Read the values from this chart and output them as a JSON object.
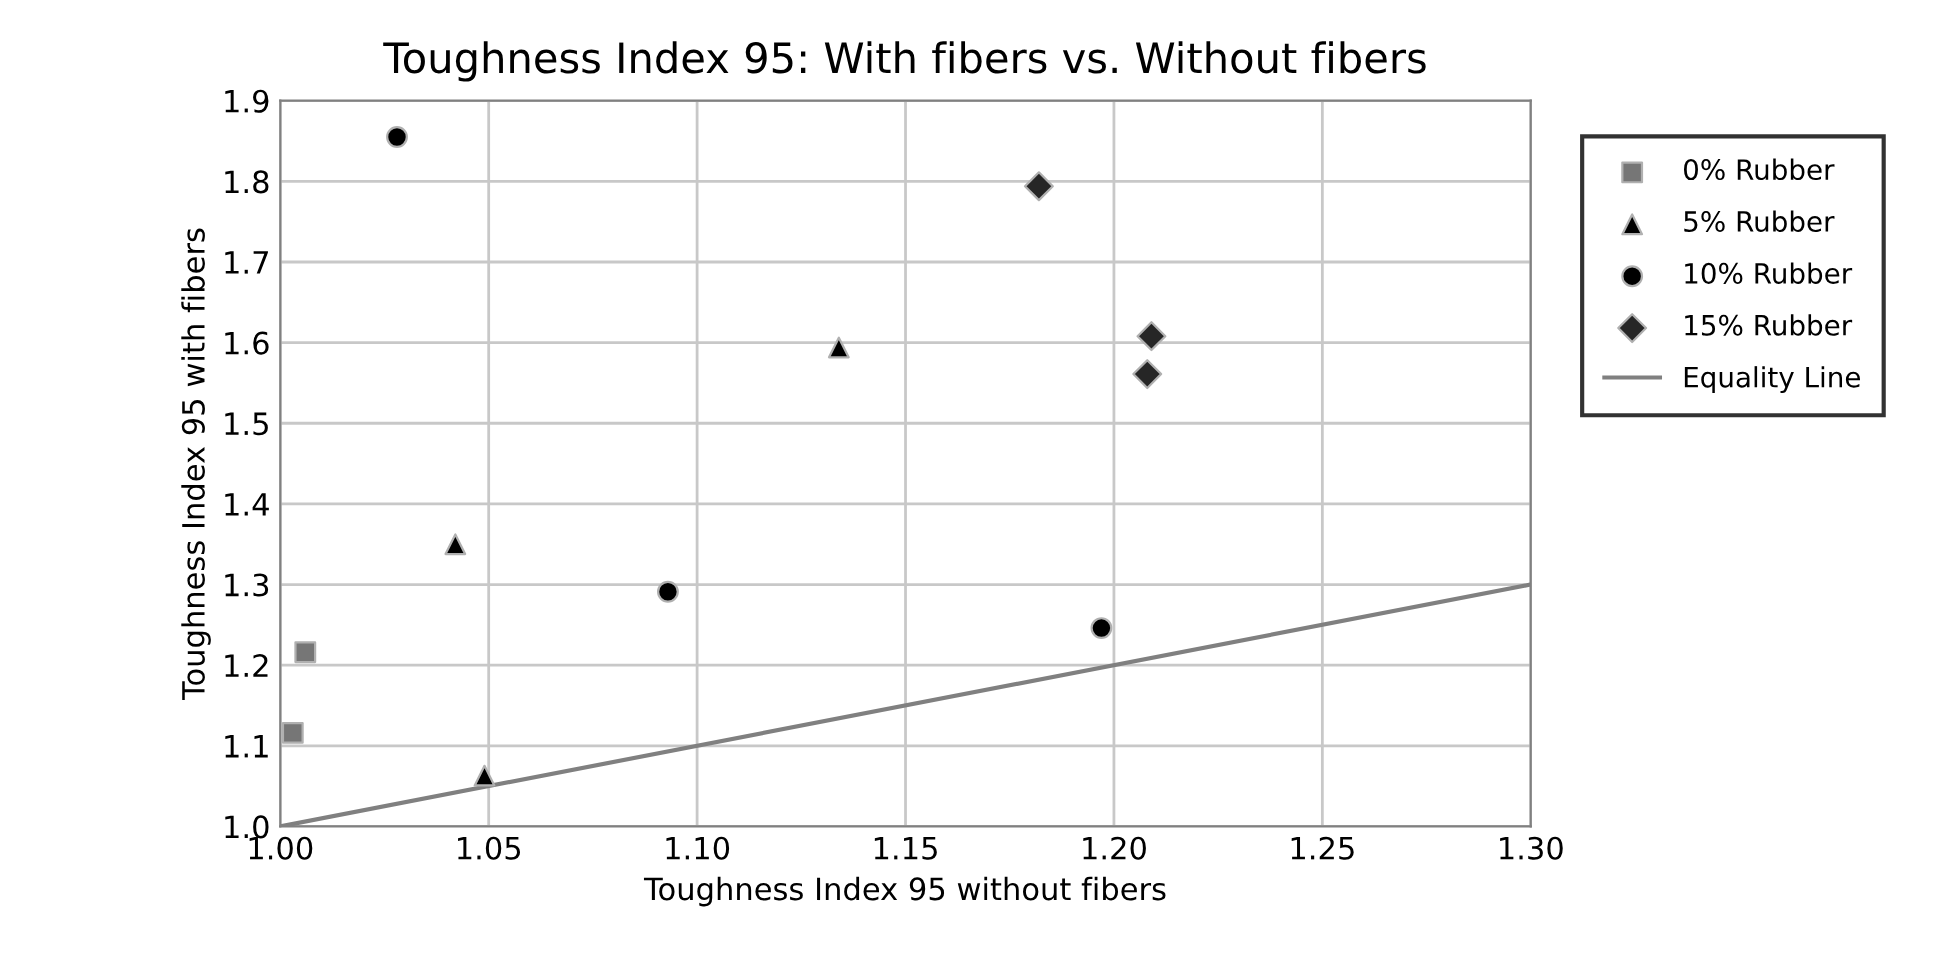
{
  "chart_data": {
    "type": "scatter",
    "title": "Toughness Index 95: With fibers vs. Without fibers",
    "xlabel": "Toughness Index 95 without fibers",
    "ylabel": "Toughness Index 95 with fibers",
    "xlim": [
      1.0,
      1.3
    ],
    "xticks": [
      {
        "value": 1.0,
        "label": "1.00"
      },
      {
        "value": 1.05,
        "label": "1.05"
      },
      {
        "value": 1.1,
        "label": "1.10"
      },
      {
        "value": 1.15,
        "label": "1.15"
      },
      {
        "value": 1.2,
        "label": "1.20"
      },
      {
        "value": 1.25,
        "label": "1.25"
      },
      {
        "value": 1.3,
        "label": "1.30"
      }
    ],
    "ylim": [
      1.0,
      1.9
    ],
    "yticks": [
      {
        "value": 1.0,
        "label": "1.0"
      },
      1.1,
      1.2,
      1.3,
      1.4,
      1.5,
      1.6,
      1.7,
      1.8,
      1.9
    ],
    "grid": true,
    "legend": "right",
    "series": [
      {
        "name": "0% Rubber",
        "color": "#767676",
        "marker": "square",
        "x": [
          1.003,
          1.006
        ],
        "values": [
          1.116,
          1.216
        ]
      },
      {
        "name": "5% Rubber",
        "color": "#000000",
        "marker": "triangle",
        "x": [
          1.042,
          1.049,
          1.134
        ],
        "values": [
          1.35,
          1.063,
          1.594
        ]
      },
      {
        "name": "10% Rubber",
        "color": "#000000",
        "marker": "circle",
        "x": [
          1.028,
          1.093,
          1.197
        ],
        "values": [
          1.855,
          1.291,
          1.246
        ]
      },
      {
        "name": "15% Rubber",
        "color": "#262626",
        "marker": "diamond",
        "x": [
          1.182,
          1.209,
          1.208
        ],
        "values": [
          1.794,
          1.608,
          1.561
        ]
      },
      {
        "name": "Equality Line",
        "type": "line",
        "color": "#808080",
        "marker": "none",
        "x": [
          1.0,
          1.3
        ],
        "values": [
          1.0,
          1.3
        ]
      }
    ]
  }
}
